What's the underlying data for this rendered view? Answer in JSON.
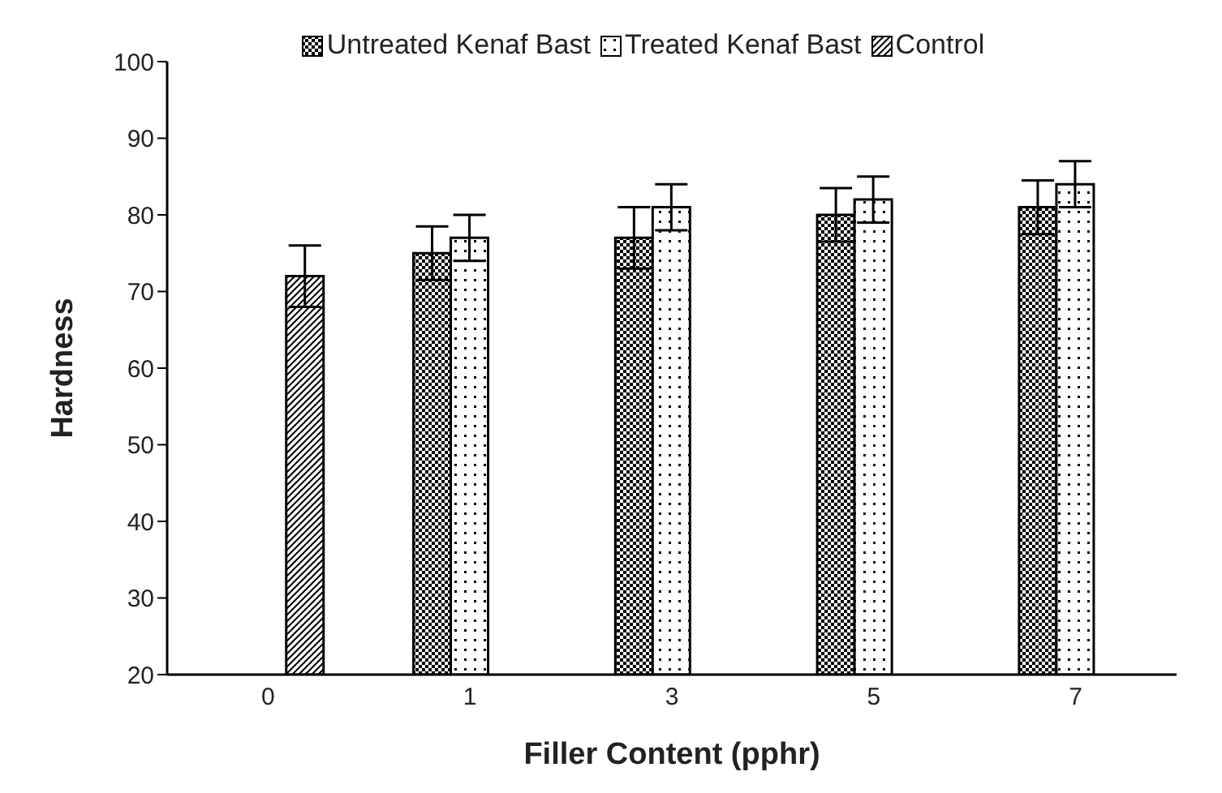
{
  "chart_data": {
    "type": "bar",
    "xlabel": "Filler Content (pphr)",
    "ylabel": "Hardness",
    "categories": [
      "0",
      "1",
      "3",
      "5",
      "7"
    ],
    "series": [
      {
        "name": "Untreated Kenaf Bast",
        "color": "#000000",
        "values": [
          null,
          75,
          77,
          80,
          81
        ],
        "errors": [
          null,
          3.5,
          4,
          3.5,
          3.5
        ]
      },
      {
        "name": "Treated Kenaf Bast",
        "color": "#000000",
        "values": [
          null,
          77,
          81,
          82,
          84
        ],
        "errors": [
          null,
          3,
          3,
          3,
          3
        ]
      },
      {
        "name": "Control",
        "color": "#000000",
        "values": [
          72,
          null,
          null,
          null,
          null
        ],
        "errors": [
          4,
          null,
          null,
          null,
          null
        ]
      }
    ],
    "ylim": [
      20,
      100
    ],
    "yticks": [
      20,
      30,
      40,
      50,
      60,
      70,
      80,
      90,
      100
    ],
    "grid": false,
    "legend": "top"
  }
}
